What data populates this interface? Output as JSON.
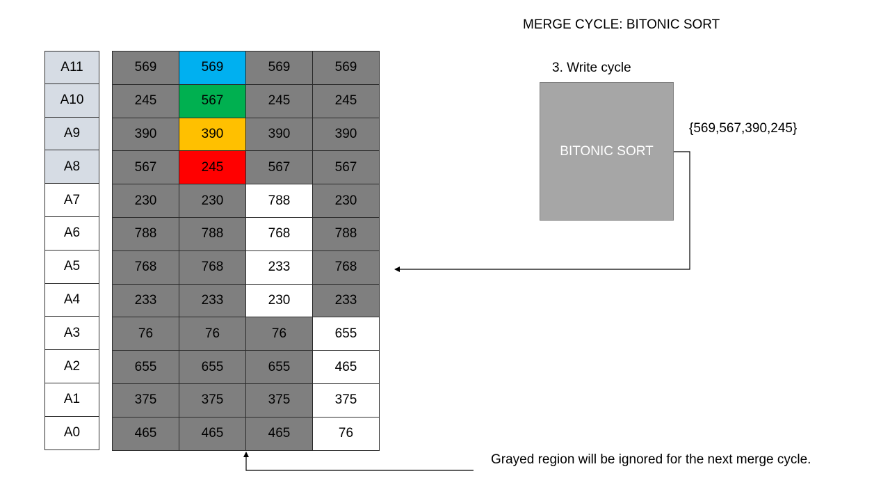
{
  "title": "MERGE CYCLE: BITONIC SORT",
  "step_label": "3. Write cycle",
  "sort_box_label": "BITONIC SORT",
  "output_values": "{569,567,390,245}",
  "note": "Grayed region will be ignored for the next merge cycle.",
  "addresses": [
    {
      "label": "A11",
      "highlighted": true
    },
    {
      "label": "A10",
      "highlighted": true
    },
    {
      "label": "A9",
      "highlighted": true
    },
    {
      "label": "A8",
      "highlighted": true
    },
    {
      "label": "A7",
      "highlighted": false
    },
    {
      "label": "A6",
      "highlighted": false
    },
    {
      "label": "A5",
      "highlighted": false
    },
    {
      "label": "A4",
      "highlighted": false
    },
    {
      "label": "A3",
      "highlighted": false
    },
    {
      "label": "A2",
      "highlighted": false
    },
    {
      "label": "A1",
      "highlighted": false
    },
    {
      "label": "A0",
      "highlighted": false
    }
  ],
  "colors": {
    "gray": "#7f7f7f",
    "white": "#ffffff",
    "blue": "#00b0f0",
    "green": "#00b050",
    "amber": "#ffc000",
    "red": "#ff0000",
    "address_highlight": "#d6dce4",
    "sort_box": "#a6a6a6"
  },
  "grid": [
    [
      {
        "v": "569",
        "c": "gray"
      },
      {
        "v": "569",
        "c": "blue"
      },
      {
        "v": "569",
        "c": "gray"
      },
      {
        "v": "569",
        "c": "gray"
      }
    ],
    [
      {
        "v": "245",
        "c": "gray"
      },
      {
        "v": "567",
        "c": "green"
      },
      {
        "v": "245",
        "c": "gray"
      },
      {
        "v": "245",
        "c": "gray"
      }
    ],
    [
      {
        "v": "390",
        "c": "gray"
      },
      {
        "v": "390",
        "c": "amber"
      },
      {
        "v": "390",
        "c": "gray"
      },
      {
        "v": "390",
        "c": "gray"
      }
    ],
    [
      {
        "v": "567",
        "c": "gray"
      },
      {
        "v": "245",
        "c": "red"
      },
      {
        "v": "567",
        "c": "gray"
      },
      {
        "v": "567",
        "c": "gray"
      }
    ],
    [
      {
        "v": "230",
        "c": "gray"
      },
      {
        "v": "230",
        "c": "gray"
      },
      {
        "v": "788",
        "c": "white"
      },
      {
        "v": "230",
        "c": "gray"
      }
    ],
    [
      {
        "v": "788",
        "c": "gray"
      },
      {
        "v": "788",
        "c": "gray"
      },
      {
        "v": "768",
        "c": "white"
      },
      {
        "v": "788",
        "c": "gray"
      }
    ],
    [
      {
        "v": "768",
        "c": "gray"
      },
      {
        "v": "768",
        "c": "gray"
      },
      {
        "v": "233",
        "c": "white"
      },
      {
        "v": "768",
        "c": "gray"
      }
    ],
    [
      {
        "v": "233",
        "c": "gray"
      },
      {
        "v": "233",
        "c": "gray"
      },
      {
        "v": "230",
        "c": "white"
      },
      {
        "v": "233",
        "c": "gray"
      }
    ],
    [
      {
        "v": "76",
        "c": "gray"
      },
      {
        "v": "76",
        "c": "gray"
      },
      {
        "v": "76",
        "c": "gray"
      },
      {
        "v": "655",
        "c": "white"
      }
    ],
    [
      {
        "v": "655",
        "c": "gray"
      },
      {
        "v": "655",
        "c": "gray"
      },
      {
        "v": "655",
        "c": "gray"
      },
      {
        "v": "465",
        "c": "white"
      }
    ],
    [
      {
        "v": "375",
        "c": "gray"
      },
      {
        "v": "375",
        "c": "gray"
      },
      {
        "v": "375",
        "c": "gray"
      },
      {
        "v": "375",
        "c": "white"
      }
    ],
    [
      {
        "v": "465",
        "c": "gray"
      },
      {
        "v": "465",
        "c": "gray"
      },
      {
        "v": "465",
        "c": "gray"
      },
      {
        "v": "76",
        "c": "white"
      }
    ]
  ]
}
